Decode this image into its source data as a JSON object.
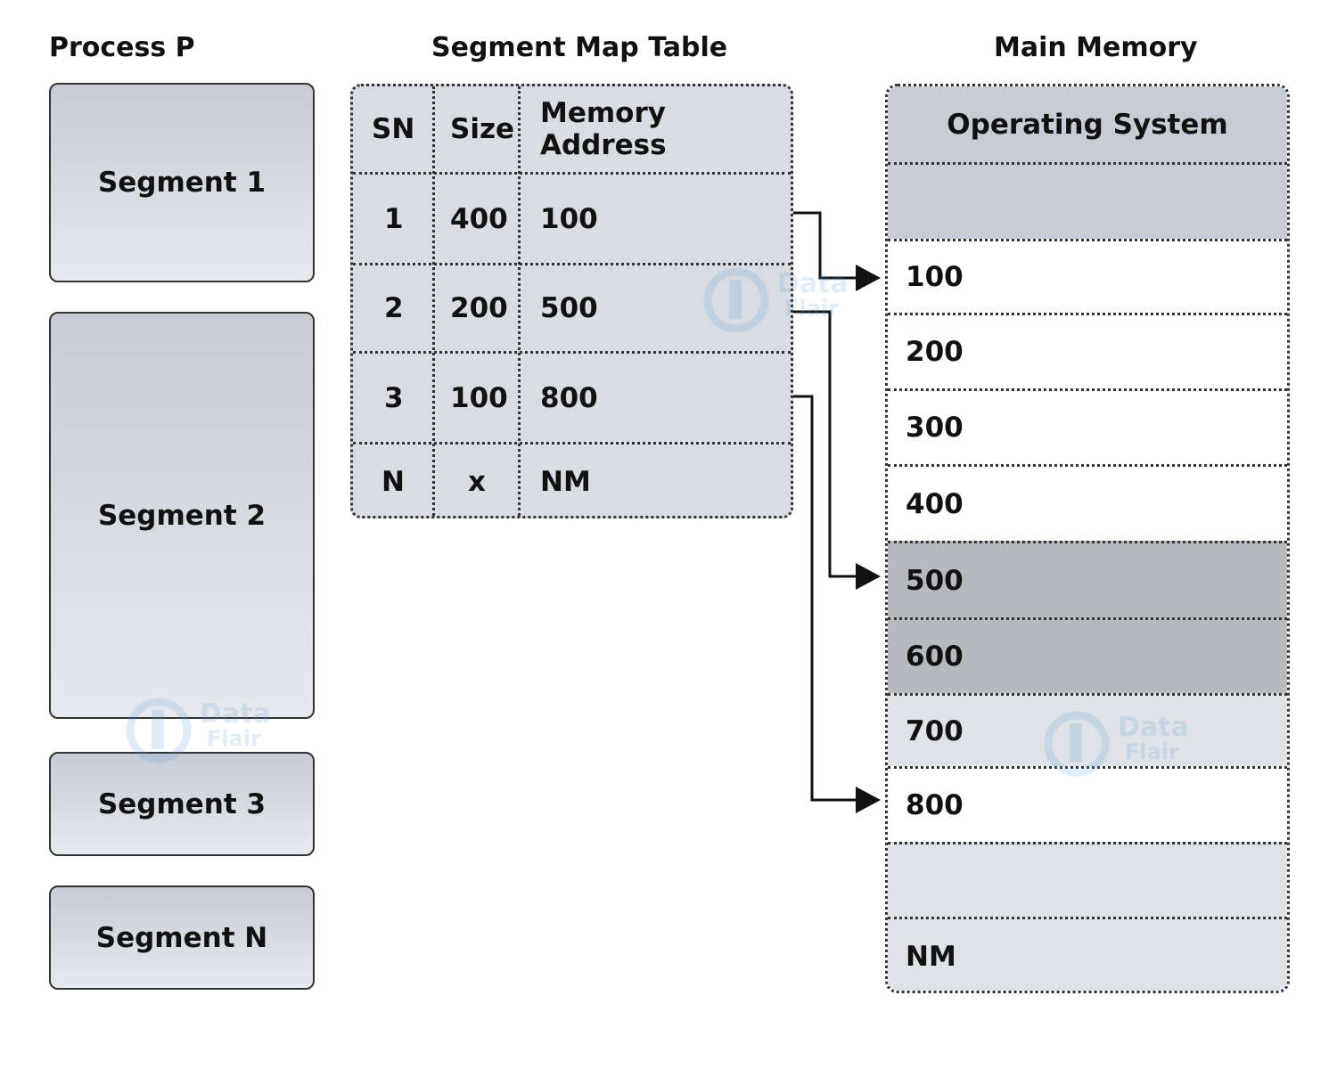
{
  "titles": {
    "process": "Process P",
    "smt": "Segment Map Table",
    "memory": "Main Memory"
  },
  "process_segments": [
    "Segment 1",
    "Segment 2",
    "Segment 3",
    "Segment N"
  ],
  "segment_map_table": {
    "headers": [
      "SN",
      "Size",
      "Memory Address"
    ],
    "rows": [
      [
        "1",
        "400",
        "100"
      ],
      [
        "2",
        "200",
        "500"
      ],
      [
        "3",
        "100",
        "800"
      ],
      [
        "N",
        "x",
        "NM"
      ]
    ]
  },
  "main_memory": {
    "rows": [
      "Operating System",
      "",
      "100",
      "200",
      "300",
      "400",
      "500",
      "600",
      "700",
      "800",
      "",
      "NM"
    ],
    "colors": {
      "os": "#c7cdd6",
      "free": "#ffffff",
      "occupied": "#b6b9bd",
      "light": "#dfe3e8"
    }
  },
  "watermark": {
    "line1": "Data",
    "line2": "Flair"
  }
}
